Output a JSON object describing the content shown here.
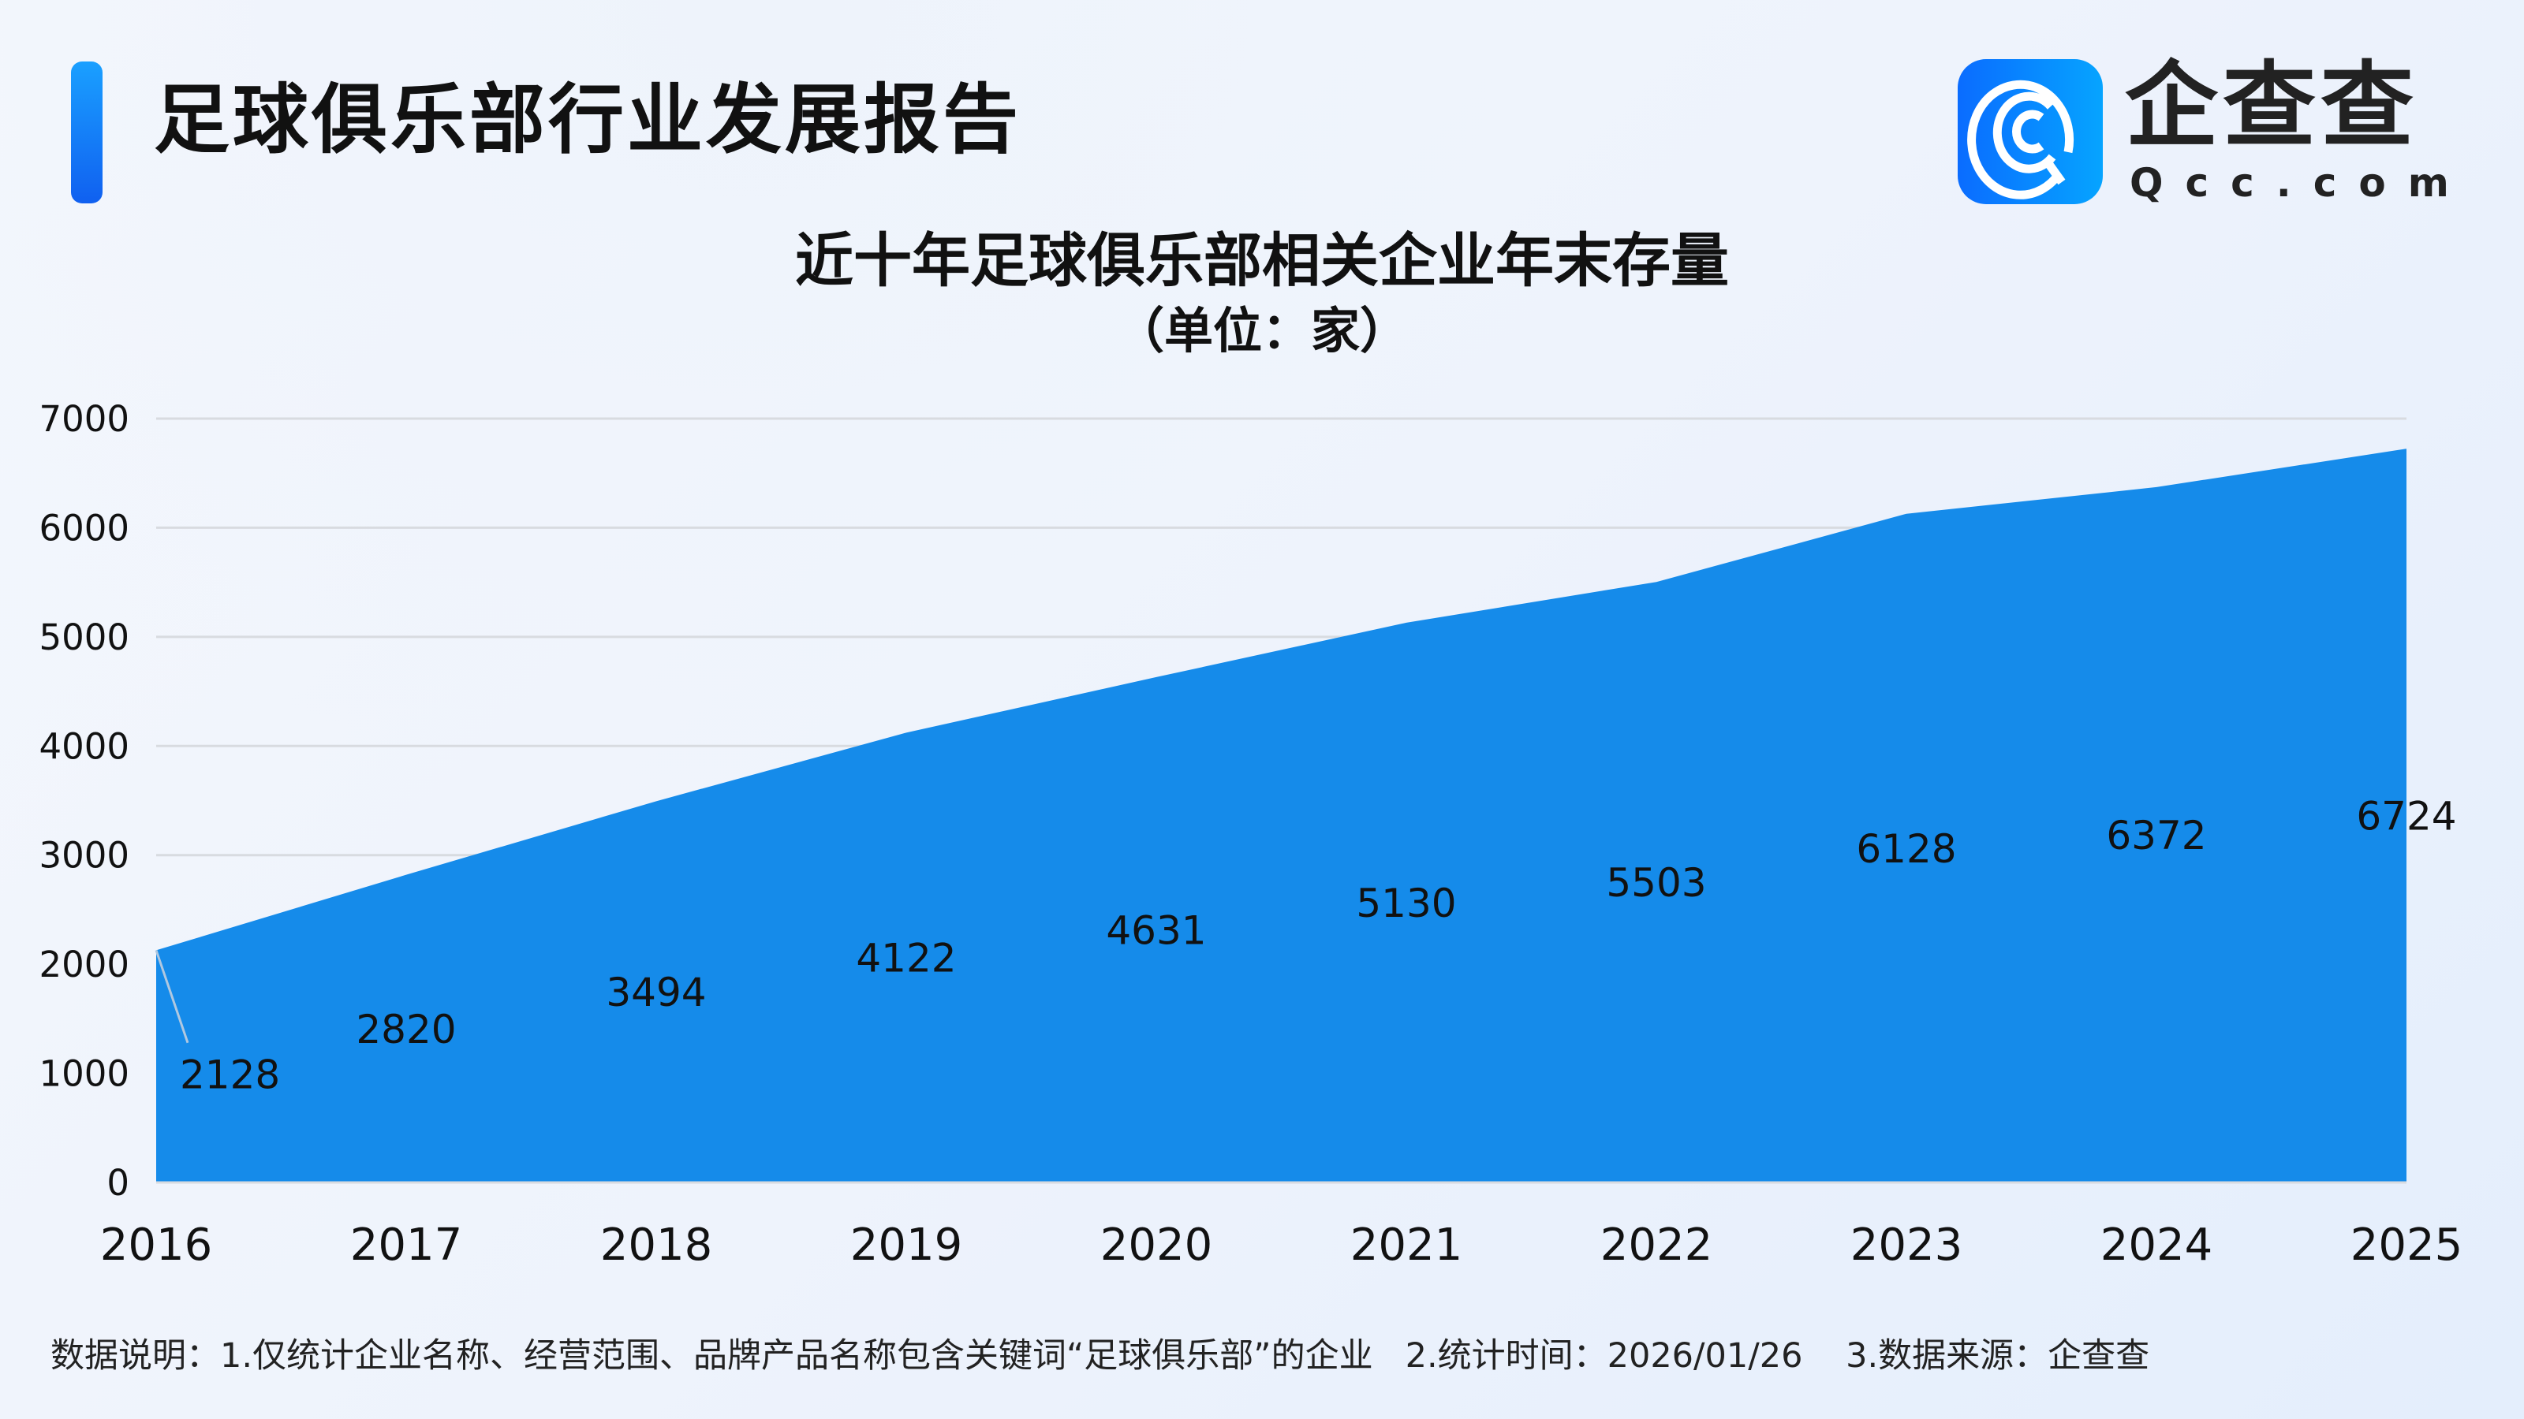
{
  "header": {
    "title": "足球俱乐部行业发展报告"
  },
  "logo": {
    "cn": "企查查",
    "en": "Qcc.com"
  },
  "chart_data": {
    "type": "area",
    "title": "近十年足球俱乐部相关企业年末存量",
    "subtitle": "（单位：家）",
    "x": [
      "2016",
      "2017",
      "2018",
      "2019",
      "2020",
      "2021",
      "2022",
      "2023",
      "2024",
      "2025"
    ],
    "series": [
      {
        "values": [
          2128,
          2820,
          3494,
          4122,
          4631,
          5130,
          5503,
          6128,
          6372,
          6724
        ]
      }
    ],
    "ylim": [
      0,
      7000
    ],
    "yticks": [
      "0",
      "1000",
      "2000",
      "3000",
      "4000",
      "5000",
      "6000",
      "7000"
    ],
    "grid": true,
    "color": "#158bea"
  },
  "footer": {
    "note": "数据说明：1.仅统计企业名称、经营范围、品牌产品名称包含关键词“足球俱乐部”的企业   2.统计时间：2026/01/26    3.数据来源：企查查"
  }
}
